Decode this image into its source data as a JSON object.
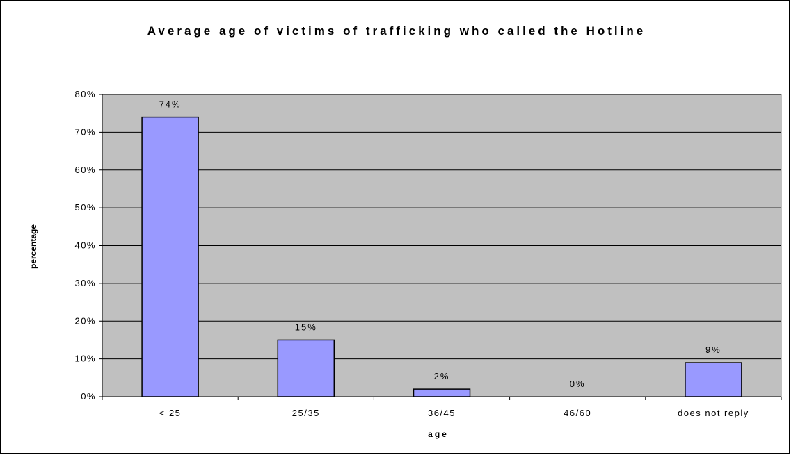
{
  "chart_data": {
    "type": "bar",
    "title": "Average age of victims of trafficking who called the Hotline",
    "xlabel": "age",
    "ylabel": "percentage",
    "categories": [
      "< 25",
      "25/35",
      "36/45",
      "46/60",
      "does not reply"
    ],
    "values": [
      74,
      15,
      2,
      0,
      9
    ],
    "data_labels": [
      "74%",
      "15%",
      "2%",
      "0%",
      "9%"
    ],
    "ylim": [
      0,
      80
    ],
    "yticks": [
      0,
      10,
      20,
      30,
      40,
      50,
      60,
      70,
      80
    ],
    "ytick_labels": [
      "0%",
      "10%",
      "20%",
      "30%",
      "40%",
      "50%",
      "60%",
      "70%",
      "80%"
    ],
    "grid": true,
    "legend": "none",
    "colors": {
      "bar": "#9999ff",
      "plot_background": "#c0c0c0",
      "gridline": "#000000"
    }
  }
}
